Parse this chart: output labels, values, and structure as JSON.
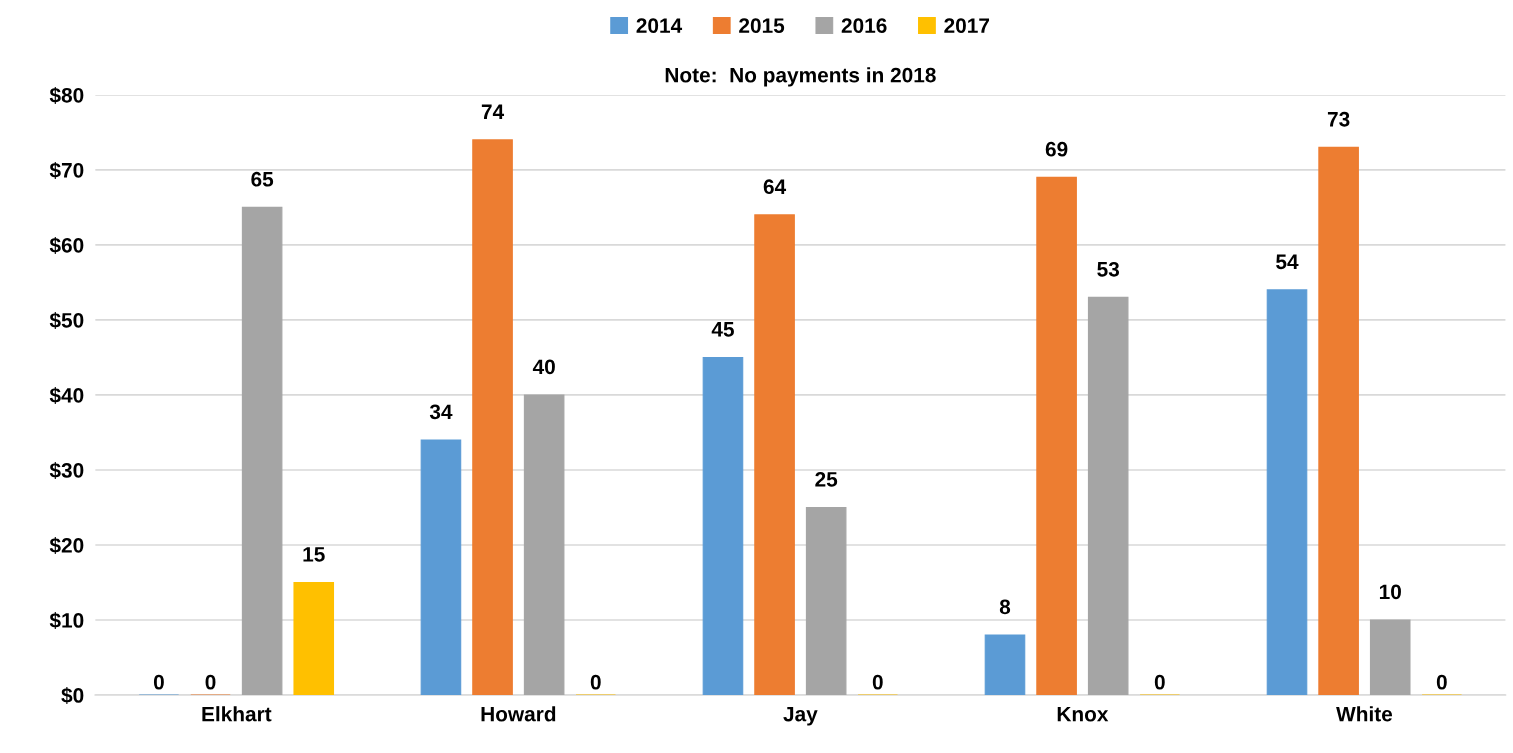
{
  "chart_data": {
    "type": "bar",
    "subtitle": "Note:  No payments in 2018",
    "categories": [
      "Elkhart",
      "Howard",
      "Jay",
      "Knox",
      "White"
    ],
    "series": [
      {
        "name": "2014",
        "color": "#5b9bd5",
        "values": [
          0,
          34,
          45,
          8,
          54
        ]
      },
      {
        "name": "2015",
        "color": "#ed7d31",
        "values": [
          0,
          74,
          64,
          69,
          73
        ]
      },
      {
        "name": "2016",
        "color": "#a5a5a5",
        "values": [
          65,
          40,
          25,
          53,
          10
        ]
      },
      {
        "name": "2017",
        "color": "#ffc000",
        "values": [
          15,
          0,
          0,
          0,
          0
        ]
      }
    ],
    "ylim": [
      0,
      80
    ],
    "yticks": [
      {
        "value": 0,
        "label": "$0"
      },
      {
        "value": 10,
        "label": "$10"
      },
      {
        "value": 20,
        "label": "$20"
      },
      {
        "value": 30,
        "label": "$30"
      },
      {
        "value": 40,
        "label": "$40"
      },
      {
        "value": 50,
        "label": "$50"
      },
      {
        "value": 60,
        "label": "$60"
      },
      {
        "value": 70,
        "label": "$70"
      },
      {
        "value": 80,
        "label": "$80"
      }
    ],
    "grid": "y",
    "legend": "top",
    "data_labels": true
  }
}
